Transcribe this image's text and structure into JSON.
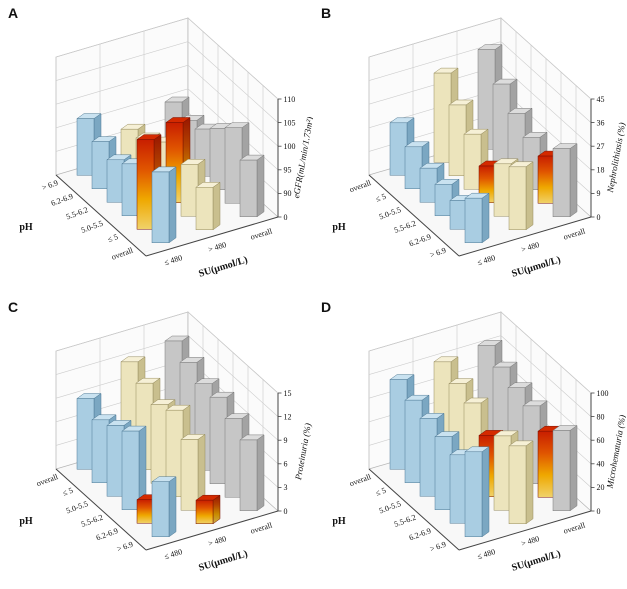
{
  "figure": {
    "background": "#ffffff"
  },
  "colors": {
    "wall": "#fbfbfb",
    "floor": "#f8f8f8",
    "grid": "#cccccc",
    "wall_edge": "#b5b5b5",
    "axis": "#444444",
    "palettes": {
      "blue": {
        "front": "#a9cde2",
        "top": "#c9e2f0",
        "side": "#7ba7c2",
        "stroke": "#4f7a96"
      },
      "cream": {
        "front": "#ece4bc",
        "top": "#f6f0d6",
        "side": "#c9bf8e",
        "stroke": "#968c5e"
      },
      "gray": {
        "front": "#c6c6c6",
        "top": "#dcdcdc",
        "side": "#a3a3a3",
        "stroke": "#7a7a7a"
      }
    },
    "highlight": {
      "front_stops": [
        "#c81e00",
        "#e05500",
        "#efa800",
        "#f0d26a"
      ],
      "side_stops": [
        "#991500",
        "#b24300",
        "#c98c00",
        "#c9ad4e"
      ],
      "top": "#d42a00",
      "stroke": "#7a1000"
    }
  },
  "chart_data": [
    {
      "panel": "A",
      "label": "A",
      "type": "bar",
      "projection": "3d",
      "zlabel": "eGFR(mL/min/1.73m²)",
      "zticks": [
        0,
        90,
        95,
        100,
        105,
        110
      ],
      "zlim": [
        0,
        110
      ],
      "zlim_display": [
        85,
        110
      ],
      "xlabel": "SU(μmol/L)",
      "ylabel": "pH",
      "ph_categories_top_to_bottom": [
        "> 6.9",
        "6.2-6.9",
        "5.5-6.2",
        "5.0-5.5",
        "≤ 5",
        "overall"
      ],
      "su_categories": [
        "≤ 480",
        "> 480",
        "overall"
      ],
      "values_order": "aligned with ph_categories_top_to_bottom (back row first)",
      "series": [
        {
          "name": "≤ 480",
          "palette": "blue",
          "values": [
            97,
            95,
            94,
            96,
            104,
            100
          ],
          "highlights": [
            4
          ]
        },
        {
          "name": "> 480",
          "palette": "cream",
          "values": [
            92,
            93,
            95,
            102,
            96,
            94
          ],
          "highlights": [
            3
          ]
        },
        {
          "name": "overall",
          "palette": "gray",
          "values": [
            95,
            94,
            95,
            98,
            101,
            97
          ],
          "highlights": []
        }
      ]
    },
    {
      "panel": "B",
      "label": "B",
      "type": "bar",
      "projection": "3d",
      "zlabel": "Nephrolithiasis (%)",
      "zticks": [
        0,
        9,
        18,
        27,
        36,
        45
      ],
      "zlim": [
        0,
        45
      ],
      "zlim_display": [
        0,
        45
      ],
      "xlabel": "SU(μmol/L)",
      "ylabel": "pH",
      "ph_categories_top_to_bottom": [
        "overall",
        "≤ 5",
        "5.0-5.5",
        "5.5-6.2",
        "6.2-6.9",
        "> 6.9"
      ],
      "su_categories": [
        "≤ 480",
        "> 480",
        "overall"
      ],
      "values_order": "aligned with ph_categories_top_to_bottom (back row first)",
      "series": [
        {
          "name": "≤ 480",
          "palette": "blue",
          "values": [
            20,
            16,
            13,
            12,
            11,
            17
          ],
          "highlights": []
        },
        {
          "name": "> 480",
          "palette": "cream",
          "values": [
            34,
            27,
            21,
            14,
            20,
            24
          ],
          "highlights": [
            3
          ]
        },
        {
          "name": "overall",
          "palette": "gray",
          "values": [
            38,
            30,
            24,
            20,
            18,
            26
          ],
          "highlights": [
            4
          ]
        }
      ]
    },
    {
      "panel": "C",
      "label": "C",
      "type": "bar",
      "projection": "3d",
      "zlabel": "Proteinuria (%)",
      "zticks": [
        0,
        3,
        6,
        9,
        12,
        15
      ],
      "zlim": [
        0,
        15
      ],
      "zlim_display": [
        0,
        15
      ],
      "xlabel": "SU(μmol/L)",
      "ylabel": "pH",
      "ph_categories_top_to_bottom": [
        "overall",
        "≤ 5",
        "5.0-5.5",
        "5.5-6.2",
        "6.2-6.9",
        "> 6.9"
      ],
      "su_categories": [
        "≤ 480",
        "> 480",
        "overall"
      ],
      "values_order": "aligned with ph_categories_top_to_bottom (back row first)",
      "series": [
        {
          "name": "≤ 480",
          "palette": "blue",
          "values": [
            9,
            8,
            9,
            10,
            3,
            7
          ],
          "highlights": [
            4
          ]
        },
        {
          "name": "> 480",
          "palette": "cream",
          "values": [
            12,
            11,
            10,
            11,
            9,
            3
          ],
          "highlights": [
            5
          ]
        },
        {
          "name": "overall",
          "palette": "gray",
          "values": [
            13,
            12,
            11,
            11,
            10,
            9
          ],
          "highlights": []
        }
      ]
    },
    {
      "panel": "D",
      "label": "D",
      "type": "bar",
      "projection": "3d",
      "zlabel": "Microhematuria (%)",
      "zticks": [
        0,
        20,
        40,
        60,
        80,
        100
      ],
      "zlim": [
        0,
        100
      ],
      "zlim_display": [
        0,
        100
      ],
      "xlabel": "SU(μmol/L)",
      "ylabel": "pH",
      "ph_categories_top_to_bottom": [
        "overall",
        "≤ 5",
        "5.0-5.5",
        "5.5-6.2",
        "6.2-6.9",
        "> 6.9"
      ],
      "su_categories": [
        "≤ 480",
        "> 480",
        "overall"
      ],
      "values_order": "aligned with ph_categories_top_to_bottom (back row first)",
      "series": [
        {
          "name": "≤ 480",
          "palette": "blue",
          "values": [
            76,
            70,
            66,
            62,
            58,
            72
          ],
          "highlights": []
        },
        {
          "name": "> 480",
          "palette": "cream",
          "values": [
            80,
            73,
            68,
            52,
            63,
            66
          ],
          "highlights": [
            3
          ]
        },
        {
          "name": "overall",
          "palette": "gray",
          "values": [
            83,
            76,
            70,
            66,
            56,
            68
          ],
          "highlights": [
            4
          ]
        }
      ]
    }
  ]
}
